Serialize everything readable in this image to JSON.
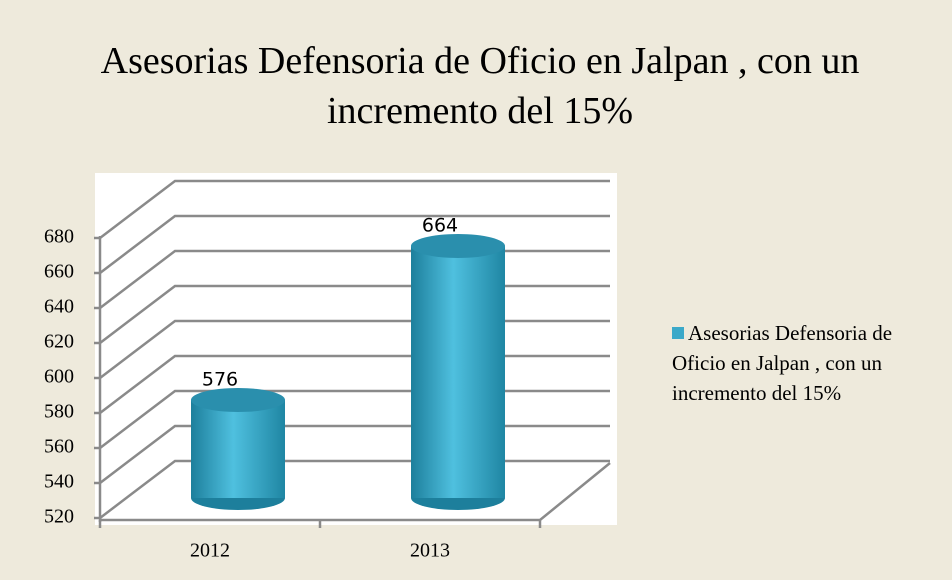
{
  "chart_data": {
    "type": "bar",
    "title": "Asesorias Defensoria de Oficio en Jalpan , con un incremento del 15%",
    "categories": [
      "2012",
      "2013"
    ],
    "series": [
      {
        "name": "Asesorias Defensoria de Oficio en Jalpan , con un incremento del 15%",
        "color": "#3ba9c9",
        "values": [
          576,
          664
        ]
      }
    ],
    "ylim": [
      520,
      680
    ],
    "yticks": [
      520,
      540,
      560,
      580,
      600,
      620,
      640,
      660,
      680
    ],
    "grid": true,
    "legend": "right"
  }
}
